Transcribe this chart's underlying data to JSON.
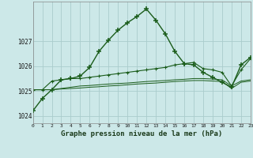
{
  "title": "Graphe pression niveau de la mer (hPa)",
  "bg_color": "#cce8e8",
  "grid_color": "#aacccc",
  "dark_green": "#1a5c1a",
  "xlim": [
    0,
    23
  ],
  "ylim": [
    1023.7,
    1028.6
  ],
  "yticks": [
    1024,
    1025,
    1026,
    1027
  ],
  "xticks": [
    0,
    1,
    2,
    3,
    4,
    5,
    6,
    7,
    8,
    9,
    10,
    11,
    12,
    13,
    14,
    15,
    16,
    17,
    18,
    19,
    20,
    21,
    22,
    23
  ],
  "series_main": [
    1024.2,
    1024.7,
    1025.05,
    1025.45,
    1025.5,
    1025.6,
    1025.95,
    1026.6,
    1027.05,
    1027.45,
    1027.75,
    1028.0,
    1028.3,
    1027.85,
    1027.3,
    1026.6,
    1026.1,
    1026.05,
    1025.75,
    1025.55,
    1025.35,
    1025.15,
    1026.05,
    1026.35
  ],
  "series_mid": [
    1025.05,
    1025.05,
    1025.4,
    1025.45,
    1025.5,
    1025.5,
    1025.55,
    1025.6,
    1025.65,
    1025.7,
    1025.75,
    1025.8,
    1025.85,
    1025.9,
    1025.95,
    1026.05,
    1026.1,
    1026.15,
    1025.9,
    1025.85,
    1025.75,
    1025.2,
    1025.85,
    1026.3
  ],
  "series_flat1": [
    1025.05,
    1025.05,
    1025.05,
    1025.1,
    1025.15,
    1025.2,
    1025.22,
    1025.25,
    1025.28,
    1025.3,
    1025.32,
    1025.35,
    1025.38,
    1025.4,
    1025.42,
    1025.45,
    1025.47,
    1025.5,
    1025.5,
    1025.48,
    1025.45,
    1025.2,
    1025.4,
    1025.45
  ],
  "series_flat2": [
    1025.05,
    1025.05,
    1025.05,
    1025.08,
    1025.1,
    1025.12,
    1025.15,
    1025.17,
    1025.2,
    1025.22,
    1025.25,
    1025.28,
    1025.3,
    1025.32,
    1025.35,
    1025.38,
    1025.4,
    1025.42,
    1025.42,
    1025.4,
    1025.38,
    1025.1,
    1025.35,
    1025.4
  ]
}
